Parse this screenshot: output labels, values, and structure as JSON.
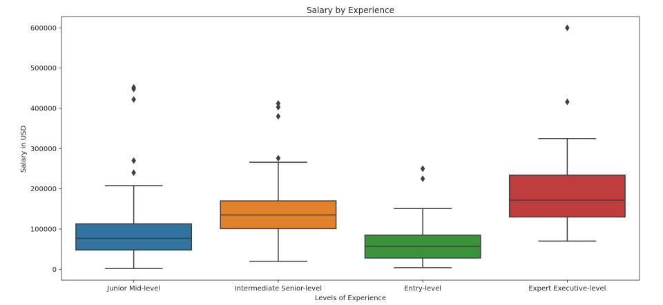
{
  "chart_data": {
    "type": "boxplot",
    "title": "Salary by Experience",
    "xlabel": "Levels of Experience",
    "ylabel": "Salary in USD",
    "ylim": [
      -27000,
      628000
    ],
    "yticks": [
      0,
      100000,
      200000,
      300000,
      400000,
      500000,
      600000
    ],
    "ytick_labels": [
      "0",
      "100000",
      "200000",
      "300000",
      "400000",
      "500000",
      "600000"
    ],
    "grid": false,
    "categories": [
      "Junior Mid-level",
      "Intermediate Senior-level",
      "Entry-level",
      "Expert Executive-level"
    ],
    "boxes": [
      {
        "category": "Junior Mid-level",
        "color": "#3274a1",
        "whisker_low": 2000,
        "q1": 48000,
        "median": 77000,
        "q3": 113000,
        "whisker_high": 208000,
        "outliers": [
          240000,
          270000,
          422000,
          448000,
          452000
        ]
      },
      {
        "category": "Intermediate Senior-level",
        "color": "#e1812c",
        "whisker_low": 20000,
        "q1": 101000,
        "median": 135000,
        "q3": 170000,
        "whisker_high": 266000,
        "outliers": [
          276000,
          380000,
          403000,
          412000
        ]
      },
      {
        "category": "Entry-level",
        "color": "#3a923a",
        "whisker_low": 4000,
        "q1": 28000,
        "median": 57000,
        "q3": 85000,
        "whisker_high": 151000,
        "outliers": [
          225000,
          250000
        ]
      },
      {
        "category": "Expert Executive-level",
        "color": "#c03d3e",
        "whisker_low": 70000,
        "q1": 130000,
        "median": 172000,
        "q3": 234000,
        "whisker_high": 325000,
        "outliers": [
          416000,
          600000
        ]
      }
    ]
  }
}
